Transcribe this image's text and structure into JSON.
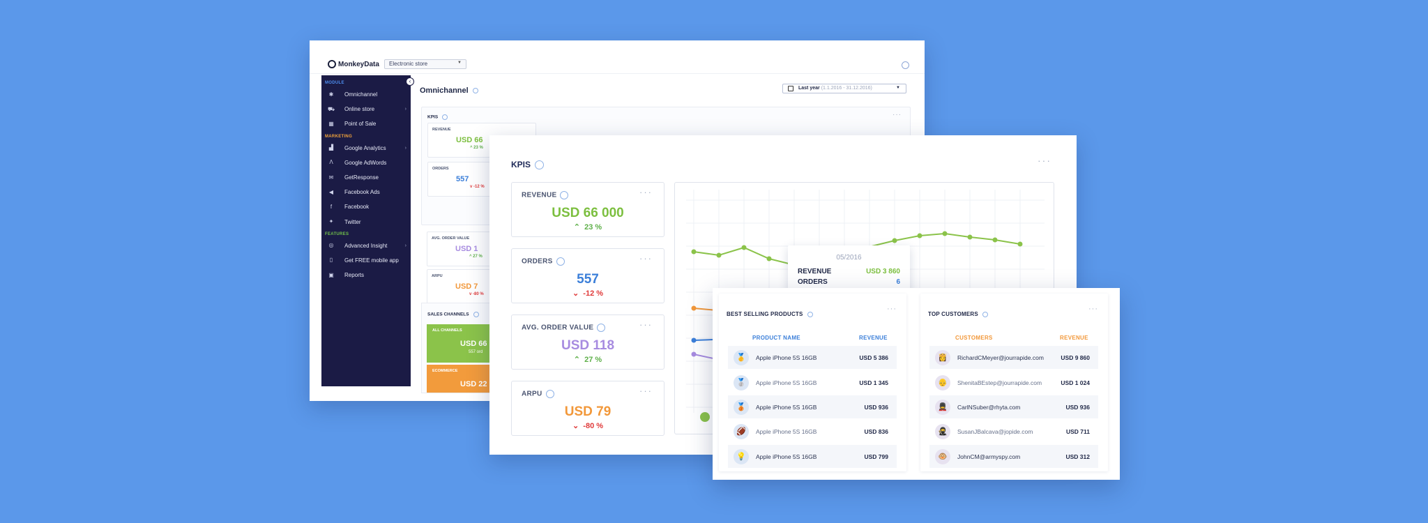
{
  "back_window": {
    "logo": "MonkeyData",
    "store_select": "Electronic store",
    "page_title": "Omnichannel",
    "date_select": {
      "label": "Last year",
      "range": "(1.1.2016 - 31.12.2016)"
    },
    "sidebar": {
      "sections": {
        "module": "MODULE",
        "marketing": "MARKETING",
        "features": "FEATURES"
      },
      "module_items": [
        {
          "label": "Omnichannel",
          "icon": "network-icon"
        },
        {
          "label": "Online store",
          "icon": "cart-icon",
          "has_arrow": true
        },
        {
          "label": "Point of Sale",
          "icon": "store-icon"
        }
      ],
      "marketing_items": [
        {
          "label": "Google Analytics",
          "icon": "bar-chart-icon",
          "has_arrow": true
        },
        {
          "label": "Google AdWords",
          "icon": "adwords-icon"
        },
        {
          "label": "GetResponse",
          "icon": "mail-icon"
        },
        {
          "label": "Facebook Ads",
          "icon": "megaphone-icon"
        },
        {
          "label": "Facebook",
          "icon": "facebook-icon"
        },
        {
          "label": "Twitter",
          "icon": "twitter-icon"
        }
      ],
      "features_items": [
        {
          "label": "Advanced Insight",
          "icon": "insight-icon",
          "has_arrow": true
        },
        {
          "label": "Get FREE mobile app",
          "icon": "mobile-icon"
        },
        {
          "label": "Reports",
          "icon": "report-icon"
        }
      ]
    },
    "kpis_title": "KPIS",
    "mini_kpis": [
      {
        "label": "REVENUE",
        "value": "USD 66",
        "change": "23 %"
      },
      {
        "label": "ORDERS",
        "value": "557",
        "change": "-12 %"
      },
      {
        "label": "AVG. ORDER VALUE",
        "value": "USD 1",
        "change": "27 %"
      },
      {
        "label": "ARPU",
        "value": "USD 7",
        "change": "-80 %"
      }
    ],
    "sales_channels_title": "SALES CHANNELS",
    "channels": [
      {
        "label": "ALL CHANNELS",
        "value": "USD 66",
        "sub": "557 ord"
      },
      {
        "label": "ECOMMERCE",
        "value": "USD 22"
      }
    ]
  },
  "kpi_window": {
    "title": "KPIS",
    "cards": [
      {
        "label": "REVENUE",
        "value": "USD 66 000",
        "change": "23 %",
        "direction": "up",
        "color": "#7cbf3f"
      },
      {
        "label": "ORDERS",
        "value": "557",
        "change": "-12 %",
        "direction": "down",
        "color": "#3b7fd9"
      },
      {
        "label": "AVG. ORDER VALUE",
        "value": "USD 118",
        "change": "27 %",
        "direction": "up",
        "color": "#a78be0"
      },
      {
        "label": "ARPU",
        "value": "USD 79",
        "change": "-80 %",
        "direction": "down",
        "color": "#f2983a"
      }
    ],
    "tooltip": {
      "date": "05/2016",
      "rows": [
        {
          "label": "REVENUE",
          "value": "USD 3 860"
        },
        {
          "label": "ORDERS",
          "value": "6"
        }
      ]
    },
    "colors": {
      "up": "#5fb04a",
      "down": "#e03a3a"
    }
  },
  "best_selling": {
    "title": "BEST SELLING PRODUCTS",
    "col_name": "PRODUCT NAME",
    "col_revenue": "REVENUE",
    "rows": [
      {
        "name": "Apple iPhone 5S 16GB",
        "revenue": "USD 5 386",
        "icon": "gold-medal-icon"
      },
      {
        "name": "Apple iPhone 5S 16GB",
        "revenue": "USD 1 345",
        "icon": "silver-medal-icon"
      },
      {
        "name": "Apple iPhone 5S 16GB",
        "revenue": "USD 936",
        "icon": "bronze-medal-icon"
      },
      {
        "name": "Apple iPhone 5S 16GB",
        "revenue": "USD 836",
        "icon": "football-icon"
      },
      {
        "name": "Apple iPhone 5S 16GB",
        "revenue": "USD 799",
        "icon": "bulb-icon"
      }
    ]
  },
  "top_customers": {
    "title": "TOP CUSTOMERS",
    "col_name": "CUSTOMERS",
    "col_revenue": "REVENUE",
    "rows": [
      {
        "name": "RichardCMeyer@jourrapide.com",
        "revenue": "USD 9 860",
        "icon": "princess-avatar-icon"
      },
      {
        "name": "ShenitaBEstep@jourrapide.com",
        "revenue": "USD 1 024",
        "icon": "old-man-avatar-icon"
      },
      {
        "name": "CarlNSuber@rhyta.com",
        "revenue": "USD 936",
        "icon": "guard-avatar-icon"
      },
      {
        "name": "SusanJBalcava@jopide.com",
        "revenue": "USD 711",
        "icon": "ninja-avatar-icon"
      },
      {
        "name": "JohnCM@armyspy.com",
        "revenue": "USD 312",
        "icon": "monkey-avatar-icon"
      }
    ]
  }
}
